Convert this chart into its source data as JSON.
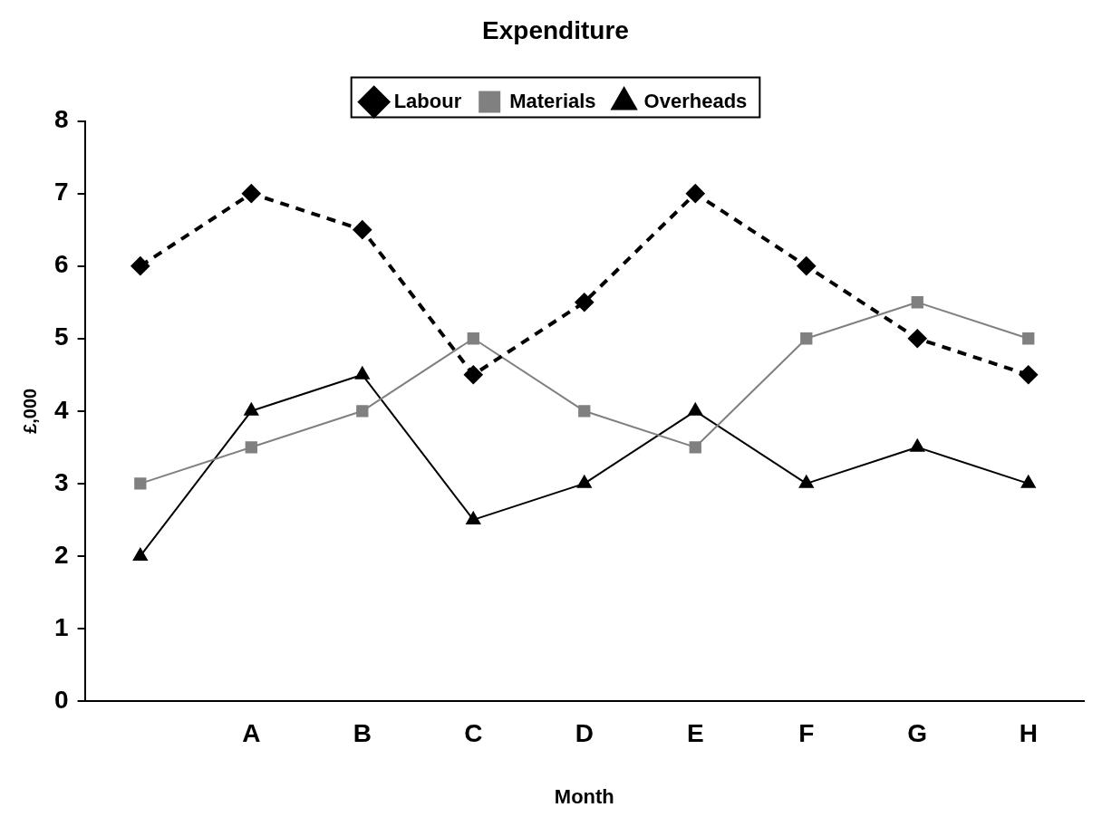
{
  "chart_data": {
    "type": "line",
    "title": "Expenditure",
    "xlabel": "Month",
    "ylabel": "£,000",
    "categories": [
      null,
      "A",
      "B",
      "C",
      "D",
      "E",
      "F",
      "G",
      "H"
    ],
    "series": [
      {
        "name": "Labour",
        "color": "#000000",
        "marker": "diamond",
        "line_style": "dashed",
        "values": [
          6,
          7,
          6.5,
          4.5,
          5.5,
          7,
          6,
          5,
          4.5
        ]
      },
      {
        "name": "Materials",
        "color": "#808080",
        "marker": "square",
        "line_style": "solid",
        "values": [
          3,
          3.5,
          4,
          5,
          4,
          3.5,
          5,
          5.5,
          5
        ]
      },
      {
        "name": "Overheads",
        "color": "#000000",
        "marker": "triangle",
        "line_style": "solid",
        "values": [
          2,
          4,
          4.5,
          2.5,
          3,
          4,
          3,
          3.5,
          3
        ]
      }
    ],
    "ylim": [
      0,
      8
    ],
    "yticks": [
      0,
      1,
      2,
      3,
      4,
      5,
      6,
      7,
      8
    ],
    "grid": false,
    "legend": "top"
  }
}
